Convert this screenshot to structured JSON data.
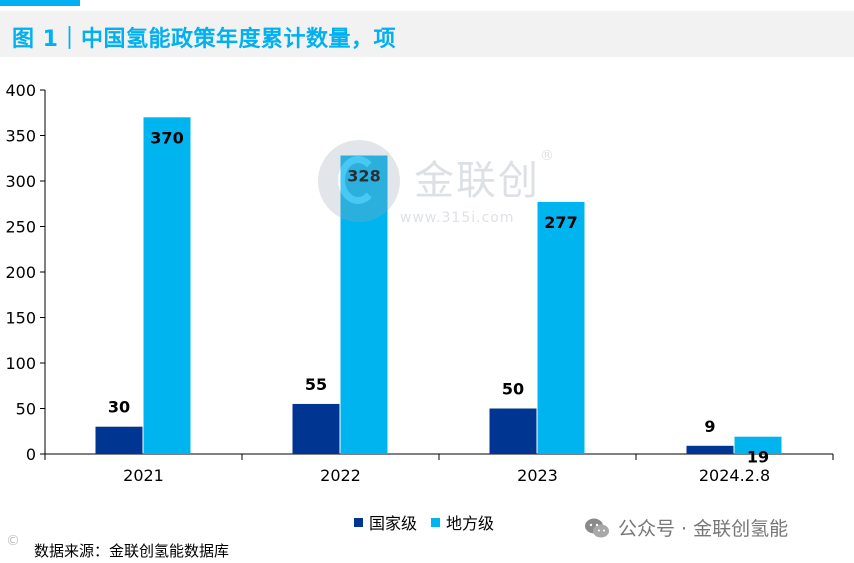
{
  "header": {
    "title": "图 1｜中国氢能政策年度累计数量，项"
  },
  "chart_data": {
    "type": "bar",
    "categories": [
      "2021",
      "2022",
      "2023",
      "2024.2.8"
    ],
    "series": [
      {
        "name": "国家级",
        "values": [
          30,
          55,
          50,
          9
        ],
        "color": "#003591"
      },
      {
        "name": "地方级",
        "values": [
          370,
          328,
          277,
          19
        ],
        "color": "#00B4F0"
      }
    ],
    "yticks": [
      "0",
      "50",
      "100",
      "150",
      "200",
      "250",
      "300",
      "350",
      "400"
    ],
    "ylim": [
      0,
      400
    ],
    "xlabel": "",
    "ylabel": "",
    "legend_position": "bottom",
    "grid": false
  },
  "legend": {
    "national": "国家级",
    "local": "地方级"
  },
  "footer": {
    "source": "数据来源：金联创氢能数据库",
    "wechat": "公众号 · 金联创氢能"
  },
  "watermark": {
    "brand": "金联创",
    "registered": "®",
    "url": "www.315i.com"
  },
  "icons": {
    "wechat": "wechat-icon",
    "brand_logo": "brand-logo-icon"
  }
}
